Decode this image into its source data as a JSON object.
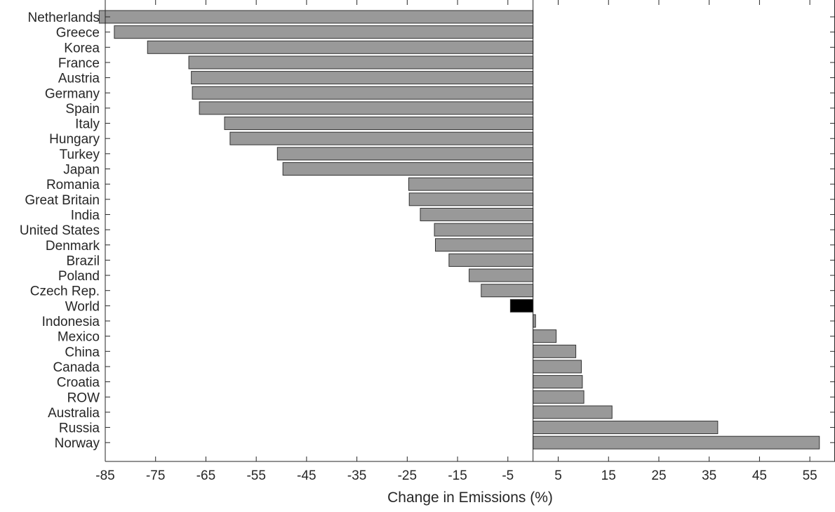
{
  "chart_data": {
    "type": "bar",
    "orientation": "horizontal",
    "title": "",
    "xlabel": "Change in Emissions (%)",
    "ylabel": "",
    "xlim": [
      -85,
      60
    ],
    "xticks": [
      -85,
      -75,
      -65,
      -55,
      -45,
      -35,
      -25,
      -15,
      -5,
      5,
      15,
      25,
      35,
      45,
      55
    ],
    "grid": false,
    "legend": "none",
    "colors": {
      "bar": "#999999",
      "highlight": "#000000",
      "edge": "#333333",
      "axis": "#262626"
    },
    "categories": [
      "Netherlands",
      "Greece",
      "Korea",
      "France",
      "Austria",
      "Germany",
      "Spain",
      "Italy",
      "Hungary",
      "Turkey",
      "Japan",
      "Romania",
      "Great Britain",
      "India",
      "United States",
      "Denmark",
      "Brazil",
      "Poland",
      "Czech Rep.",
      "World",
      "Indonesia",
      "Mexico",
      "China",
      "Canada",
      "Croatia",
      "ROW",
      "Australia",
      "Russia",
      "Norway"
    ],
    "values": [
      -86.2,
      -83.2,
      -76.6,
      -68.4,
      -67.9,
      -67.7,
      -66.3,
      -61.3,
      -60.2,
      -50.8,
      -49.7,
      -24.7,
      -24.6,
      -22.4,
      -19.6,
      -19.4,
      -16.7,
      -12.7,
      -10.3,
      -4.5,
      0.5,
      4.6,
      8.5,
      9.6,
      9.8,
      10.1,
      15.7,
      36.7,
      56.9
    ],
    "highlight": [
      "World"
    ]
  }
}
